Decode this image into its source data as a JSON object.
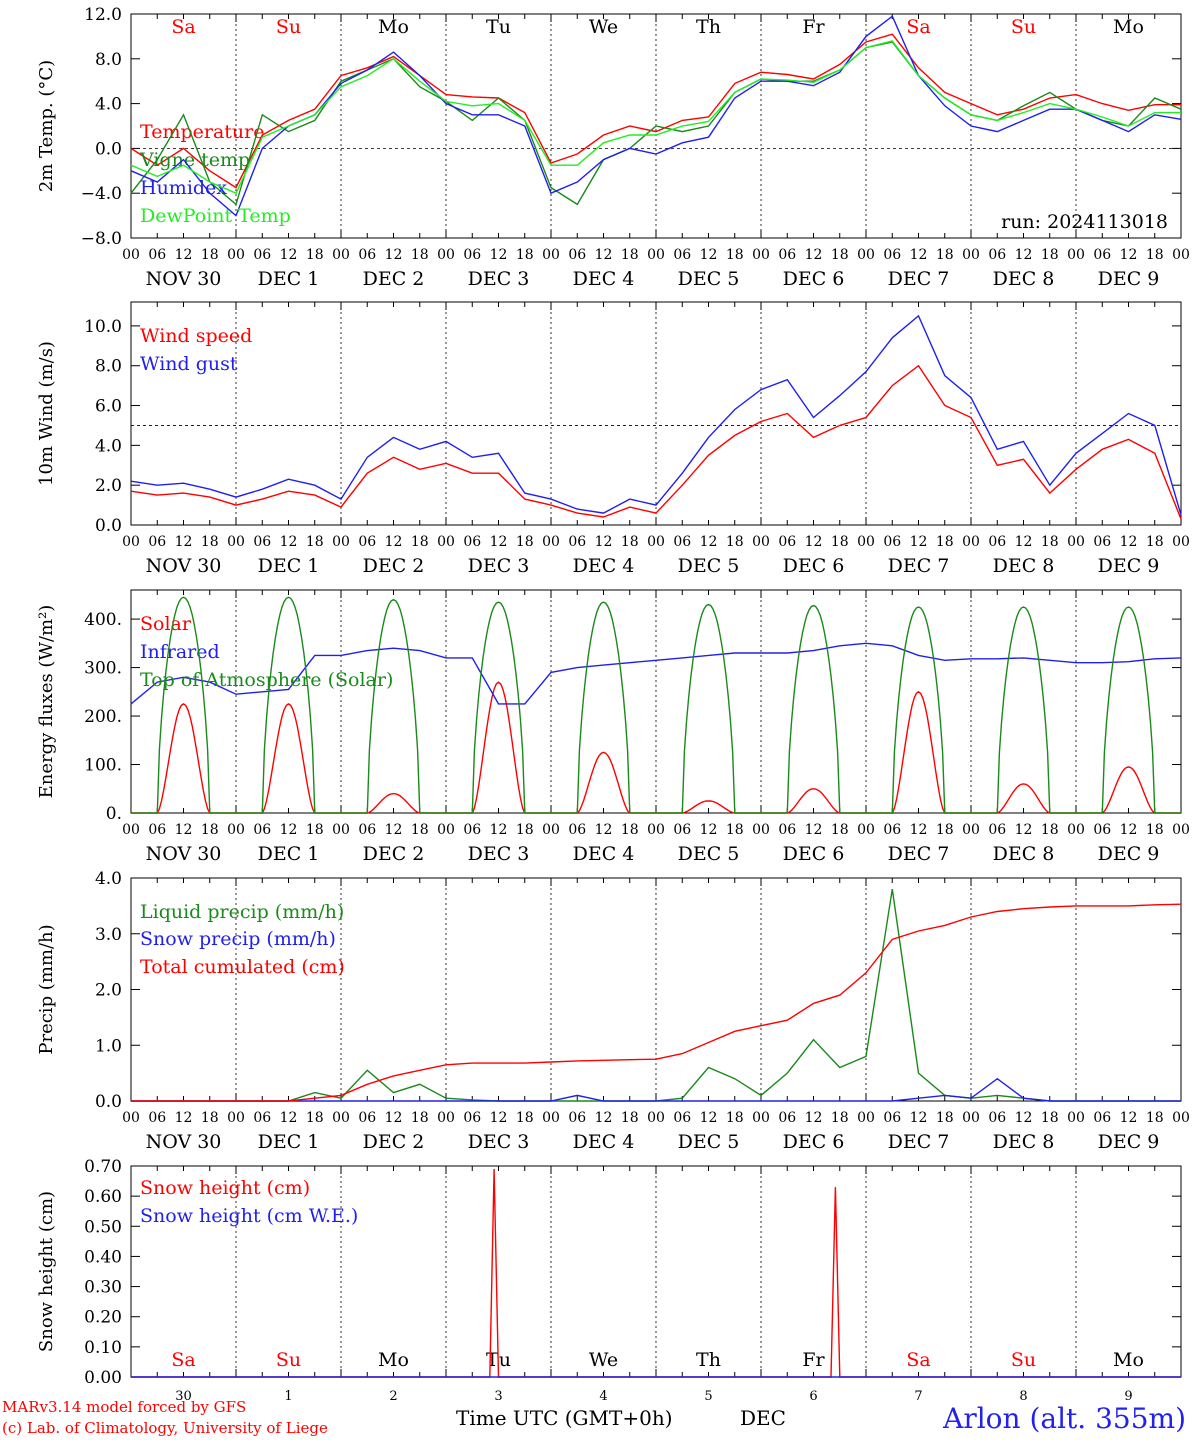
{
  "run_label": "run: 2024113018",
  "days_top": [
    {
      "label": "Sa",
      "color": "#ff0000"
    },
    {
      "label": "Su",
      "color": "#ff0000"
    },
    {
      "label": "Mo",
      "color": "#000000"
    },
    {
      "label": "Tu",
      "color": "#000000"
    },
    {
      "label": "We",
      "color": "#000000"
    },
    {
      "label": "Th",
      "color": "#000000"
    },
    {
      "label": "Fr",
      "color": "#000000"
    },
    {
      "label": "Sa",
      "color": "#ff0000"
    },
    {
      "label": "Su",
      "color": "#ff0000"
    },
    {
      "label": "Mo",
      "color": "#000000"
    }
  ],
  "date_labels": [
    "NOV 30",
    "DEC  1",
    "DEC  2",
    "DEC  3",
    "DEC  4",
    "DEC  5",
    "DEC  6",
    "DEC  7",
    "DEC  8",
    "DEC  9"
  ],
  "hour_labels": [
    "00",
    "06",
    "12",
    "18"
  ],
  "bottom_day_numbers": [
    "30",
    "1",
    "2",
    "3",
    "4",
    "5",
    "6",
    "7",
    "8",
    "9"
  ],
  "footer": {
    "credit_line1": "MARv3.14 model forced by GFS",
    "credit_line2": "(c) Lab. of Climatology, University of Liege",
    "x_axis_title": "Time UTC (GMT+0h)",
    "month": "DEC",
    "station": "Arlon (alt. 355m)"
  },
  "colors": {
    "red": "#ff0000",
    "green": "#1a8a1a",
    "blue": "#2020ee",
    "lightgreen": "#22ee22",
    "black": "#000000"
  },
  "chart_data": [
    {
      "type": "line",
      "ylabel": "2m Temp. (°C)",
      "ylim": [
        -8,
        12
      ],
      "yticks": [
        -8,
        -4,
        0,
        4,
        8,
        12
      ],
      "ytick_labels": [
        "−8.0",
        "−4.0",
        "0.0",
        "4.0",
        "8.0",
        "12.0"
      ],
      "ref_line": 0,
      "x_unit": "hours since Nov 30 00 UTC",
      "x": [
        0,
        6,
        12,
        18,
        24,
        30,
        36,
        42,
        48,
        54,
        60,
        66,
        72,
        78,
        84,
        90,
        96,
        102,
        108,
        114,
        120,
        126,
        132,
        138,
        144,
        150,
        156,
        162,
        168,
        174,
        180,
        186,
        192,
        198,
        204,
        210,
        216,
        222,
        228,
        234,
        240
      ],
      "series": [
        {
          "name": "Temperature",
          "color": "#ff0000",
          "values": [
            0,
            -1.5,
            0,
            -2,
            -3.5,
            1.2,
            2.5,
            3.5,
            6.5,
            7.2,
            8.2,
            6.5,
            4.8,
            4.6,
            4.5,
            3.2,
            -1.3,
            -0.5,
            1.2,
            2,
            1.5,
            2.5,
            2.8,
            5.8,
            6.8,
            6.6,
            6.2,
            7.5,
            9.5,
            10.2,
            7.2,
            5,
            4,
            3,
            3.5,
            4.5,
            4.8,
            4,
            3.4,
            3.9,
            3.9
          ]
        },
        {
          "name": "Vigne temp",
          "color": "#1a8a1a",
          "values": [
            -4,
            -1,
            3,
            -3,
            -5,
            3,
            1.5,
            2.5,
            6,
            7,
            8,
            5.5,
            4.2,
            2.5,
            4.5,
            2.5,
            -3.5,
            -5,
            -1,
            0,
            2,
            1.5,
            2,
            5,
            6.2,
            6,
            6,
            7,
            9,
            9.5,
            6.5,
            4.5,
            3,
            2.5,
            3.8,
            5,
            3.5,
            2.5,
            2,
            4.5,
            3.5
          ]
        },
        {
          "name": "Humidex",
          "color": "#2020ee",
          "values": [
            -2,
            -3,
            -1,
            -4,
            -6,
            0,
            2,
            3,
            5.8,
            7,
            8.6,
            6.5,
            4,
            3,
            3,
            2,
            -4,
            -3,
            -1,
            0,
            -0.5,
            0.5,
            1,
            4.5,
            6,
            6,
            5.6,
            6.8,
            10,
            11.8,
            6.5,
            3.8,
            2,
            1.5,
            2.5,
            3.5,
            3.5,
            2.5,
            1.5,
            3,
            2.6
          ]
        },
        {
          "name": "DewPoint Temp",
          "color": "#22ee22",
          "values": [
            -1.5,
            -2.5,
            -1.5,
            -3,
            -4,
            1,
            2,
            3,
            5.5,
            6.5,
            8,
            6,
            4.2,
            3.8,
            4,
            2.5,
            -1.5,
            -1.5,
            0.5,
            1.2,
            1.2,
            2,
            2.4,
            5,
            6.2,
            6.1,
            5.9,
            7,
            9,
            9.6,
            6.5,
            4.5,
            3,
            2.5,
            3.2,
            4,
            3.5,
            2.8,
            2,
            3.2,
            3.2
          ]
        }
      ]
    },
    {
      "type": "line",
      "ylabel": "10m Wind (m/s)",
      "ylim": [
        0,
        11.2
      ],
      "yticks": [
        0,
        2,
        4,
        6,
        8,
        10
      ],
      "ytick_labels": [
        "0.0",
        "2.0",
        "4.0",
        "6.0",
        "8.0",
        "10.0"
      ],
      "ref_line": 5,
      "x_unit": "hours since Nov 30 00 UTC",
      "x": [
        0,
        6,
        12,
        18,
        24,
        30,
        36,
        42,
        48,
        54,
        60,
        66,
        72,
        78,
        84,
        90,
        96,
        102,
        108,
        114,
        120,
        126,
        132,
        138,
        144,
        150,
        156,
        162,
        168,
        174,
        180,
        186,
        192,
        198,
        204,
        210,
        216,
        222,
        228,
        234,
        240
      ],
      "series": [
        {
          "name": "Wind speed",
          "color": "#ff0000",
          "values": [
            1.7,
            1.5,
            1.6,
            1.4,
            1,
            1.3,
            1.7,
            1.5,
            0.9,
            2.6,
            3.4,
            2.8,
            3.1,
            2.6,
            2.6,
            1.3,
            1,
            0.6,
            0.4,
            0.9,
            0.6,
            2,
            3.5,
            4.5,
            5.2,
            5.6,
            4.4,
            5,
            5.4,
            7,
            8,
            6,
            5.4,
            3,
            3.3,
            1.6,
            2.8,
            3.8,
            4.3,
            3.6,
            0.3
          ]
        },
        {
          "name": "Wind gust",
          "color": "#2020ee",
          "values": [
            2.2,
            2,
            2.1,
            1.8,
            1.4,
            1.8,
            2.3,
            2,
            1.3,
            3.4,
            4.4,
            3.8,
            4.2,
            3.4,
            3.6,
            1.6,
            1.3,
            0.8,
            0.6,
            1.3,
            1,
            2.6,
            4.4,
            5.8,
            6.8,
            7.3,
            5.4,
            6.5,
            7.7,
            9.4,
            10.5,
            7.5,
            6.4,
            3.8,
            4.2,
            2,
            3.6,
            4.6,
            5.6,
            5,
            0.5
          ]
        }
      ]
    },
    {
      "type": "line",
      "ylabel": "Energy fluxes (W/m²)",
      "ylim": [
        0,
        460
      ],
      "yticks": [
        0,
        100,
        200,
        300,
        400
      ],
      "ytick_labels": [
        "0.",
        "100.",
        "200.",
        "300.",
        "400."
      ],
      "x_unit": "hours since Nov 30 00 UTC",
      "x": [
        0,
        6,
        12,
        18,
        24,
        30,
        36,
        42,
        48,
        54,
        60,
        66,
        72,
        78,
        84,
        90,
        96,
        102,
        108,
        114,
        120,
        126,
        132,
        138,
        144,
        150,
        156,
        162,
        168,
        174,
        180,
        186,
        192,
        198,
        204,
        210,
        216,
        222,
        228,
        234,
        240
      ],
      "series": [
        {
          "name": "Solar",
          "color": "#ff0000",
          "peaks": [
            225,
            225,
            40,
            270,
            125,
            25,
            50,
            250,
            60,
            95
          ]
        },
        {
          "name": "Infrared",
          "color": "#2020ee",
          "values": [
            225,
            270,
            280,
            270,
            245,
            250,
            255,
            325,
            325,
            335,
            340,
            335,
            320,
            320,
            225,
            225,
            290,
            300,
            305,
            310,
            315,
            320,
            325,
            330,
            330,
            330,
            335,
            345,
            350,
            345,
            325,
            315,
            318,
            318,
            320,
            315,
            310,
            310,
            312,
            318,
            320
          ]
        },
        {
          "name": "Top of Atmosphere (Solar)",
          "color": "#1a8a1a",
          "peaks": [
            445,
            445,
            440,
            435,
            435,
            430,
            428,
            425,
            425,
            425
          ]
        }
      ]
    },
    {
      "type": "line",
      "ylabel": "Precip (mm/h)",
      "ylim": [
        0,
        4
      ],
      "yticks": [
        0,
        1,
        2,
        3,
        4
      ],
      "ytick_labels": [
        "0.0",
        "1.0",
        "2.0",
        "3.0",
        "4.0"
      ],
      "x_unit": "hours since Nov 30 00 UTC",
      "x": [
        0,
        6,
        12,
        18,
        24,
        30,
        36,
        42,
        48,
        54,
        60,
        66,
        72,
        78,
        84,
        90,
        96,
        102,
        108,
        114,
        120,
        126,
        132,
        138,
        144,
        150,
        156,
        162,
        168,
        174,
        180,
        186,
        192,
        198,
        204,
        210,
        216,
        222,
        228,
        234,
        240
      ],
      "series": [
        {
          "name": "Liquid precip (mm/h)",
          "color": "#1a8a1a",
          "values": [
            0,
            0,
            0,
            0,
            0,
            0,
            0,
            0.15,
            0.05,
            0.55,
            0.15,
            0.3,
            0.05,
            0.02,
            0,
            0,
            0,
            0,
            0,
            0,
            0,
            0.05,
            0.6,
            0.4,
            0.1,
            0.5,
            1.1,
            0.6,
            0.8,
            3.8,
            0.5,
            0.1,
            0.05,
            0.1,
            0.05,
            0,
            0,
            0,
            0,
            0,
            0
          ]
        },
        {
          "name": "Snow precip (mm/h)",
          "color": "#2020ee",
          "values": [
            0,
            0,
            0,
            0,
            0,
            0,
            0,
            0,
            0,
            0,
            0,
            0,
            0,
            0,
            0,
            0,
            0,
            0.1,
            0,
            0,
            0,
            0,
            0,
            0,
            0,
            0,
            0,
            0,
            0,
            0,
            0.05,
            0.1,
            0.05,
            0.4,
            0.05,
            0,
            0,
            0,
            0,
            0,
            0
          ]
        },
        {
          "name": "Total cumulated (cm)",
          "color": "#ff0000",
          "values": [
            0,
            0,
            0,
            0,
            0,
            0,
            0,
            0.05,
            0.1,
            0.3,
            0.45,
            0.55,
            0.65,
            0.68,
            0.68,
            0.68,
            0.7,
            0.72,
            0.73,
            0.74,
            0.75,
            0.85,
            1.05,
            1.25,
            1.35,
            1.45,
            1.75,
            1.9,
            2.3,
            2.9,
            3.05,
            3.15,
            3.3,
            3.4,
            3.45,
            3.48,
            3.5,
            3.5,
            3.5,
            3.52,
            3.53
          ]
        }
      ]
    },
    {
      "type": "line",
      "ylabel": "Snow height (cm)",
      "ylim": [
        0,
        0.7
      ],
      "yticks": [
        0,
        0.1,
        0.2,
        0.3,
        0.4,
        0.5,
        0.6,
        0.7
      ],
      "ytick_labels": [
        "0.00",
        "0.10",
        "0.20",
        "0.30",
        "0.40",
        "0.50",
        "0.60",
        "0.70"
      ],
      "x_unit": "hours since Nov 30 00 UTC",
      "series": [
        {
          "name": "Snow height (cm)",
          "color": "#ff0000",
          "x": [
            0,
            82,
            83,
            84,
            160,
            161,
            162,
            240
          ],
          "values": [
            0,
            0,
            0.69,
            0,
            0,
            0.63,
            0,
            0
          ]
        },
        {
          "name": "Snow height (cm W.E.)",
          "color": "#2020ee",
          "x": [
            0,
            240
          ],
          "values": [
            0,
            0
          ]
        }
      ]
    }
  ]
}
